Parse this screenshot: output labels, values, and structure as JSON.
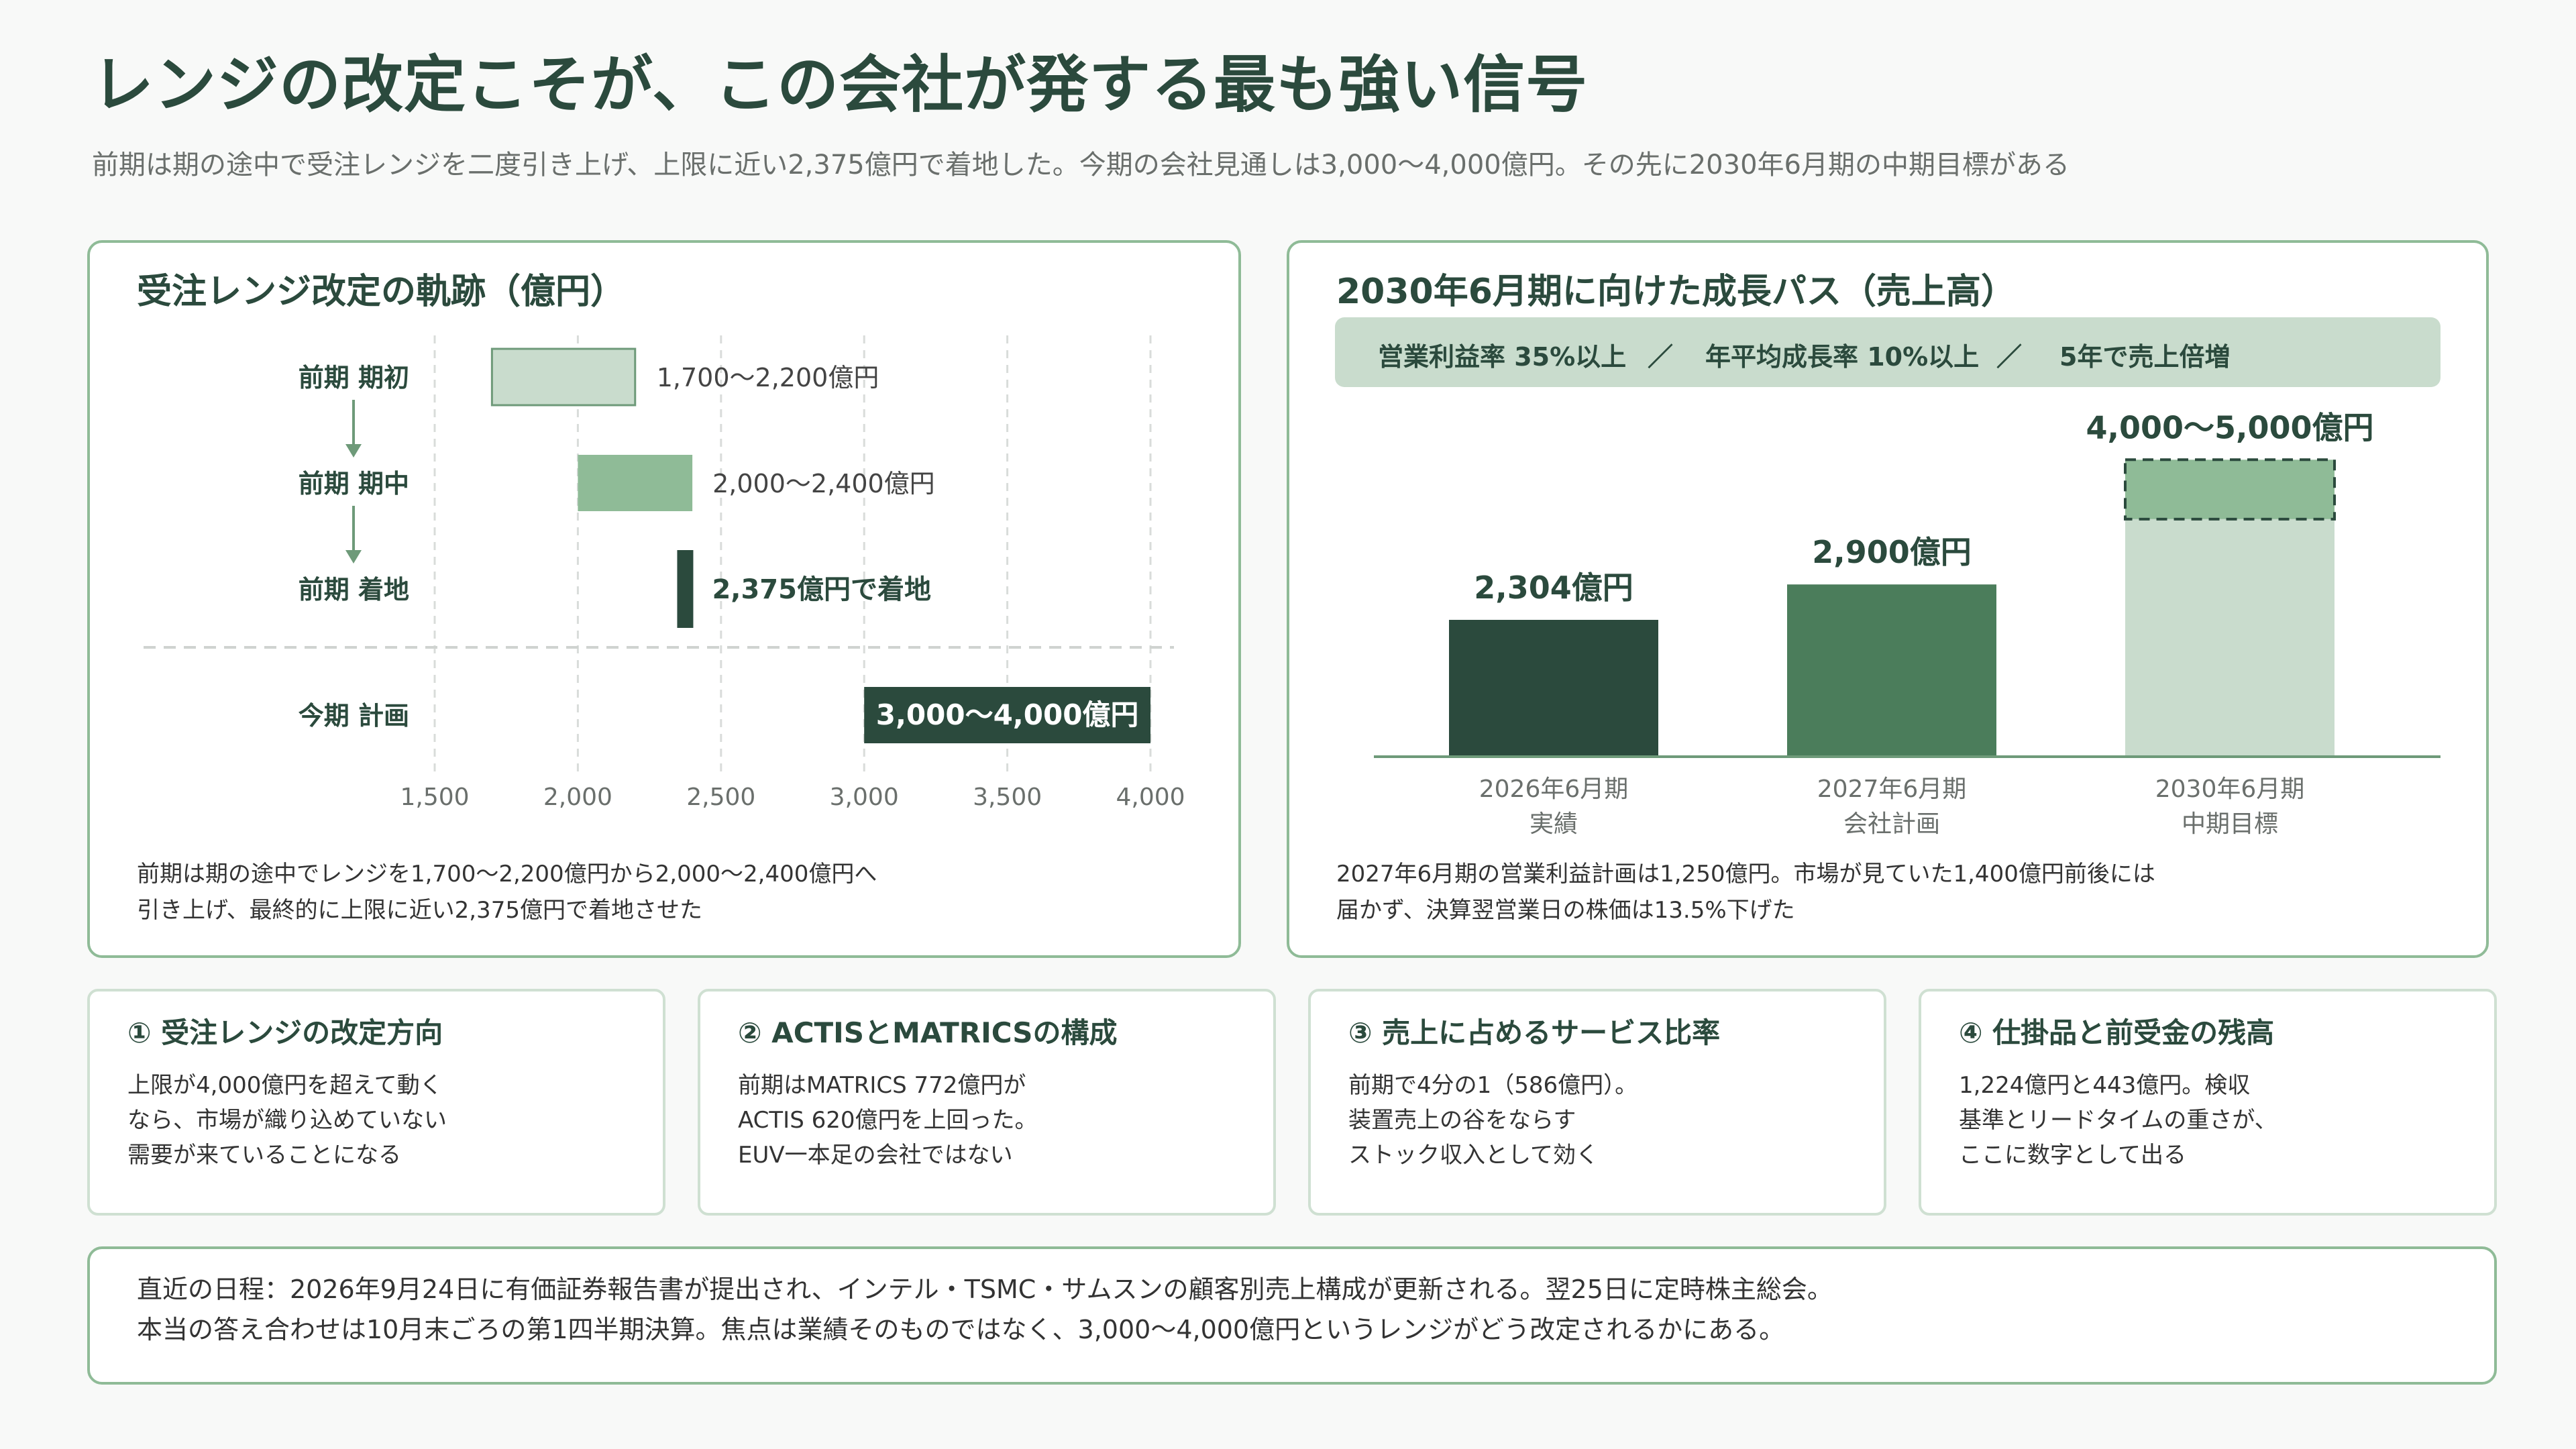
{
  "header": {
    "title": "レンジの改定こそが、この会社が発する最も強い信号",
    "subtitle": "前期は期の途中で受注レンジを二度引き上げ、上限に近い2,375億円で着地した。今期の会社見通しは3,000〜4,000億円。その先に2030年6月期の中期目標がある"
  },
  "left_panel": {
    "title": "受注レンジ改定の軌跡（億円）",
    "note_lines": [
      "前期は期の途中でレンジを1,700〜2,200億円から2,000〜2,400億円へ",
      "引き上げ、最終的に上限に近い2,375億円で着地させた"
    ]
  },
  "right_panel": {
    "title": "2030年6月期に向けた成長パス（売上高）",
    "banner": [
      "営業利益率 35%以上",
      "／",
      "年平均成長率 10%以上",
      "／",
      "5年で売上倍増"
    ],
    "note_lines": [
      "2027年6月期の営業利益計画は1,250億円。市場が見ていた1,400億円前後には",
      "届かず、決算翌営業日の株価は13.5%下げた"
    ]
  },
  "chart_data": [
    {
      "type": "range-bar",
      "title": "受注レンジ改定の軌跡（億円）",
      "categories": [
        "前期 期初",
        "前期 期中",
        "前期 着地",
        "今期 計画"
      ],
      "ranges": [
        [
          1700,
          2200
        ],
        [
          2000,
          2400
        ],
        [
          2375,
          2375
        ],
        [
          3000,
          4000
        ]
      ],
      "labels": [
        "1,700〜2,200億円",
        "2,000〜2,400億円",
        "2,375億円で着地",
        "3,000〜4,000億円"
      ],
      "xlim": [
        1500,
        4000
      ],
      "xticks": [
        1500,
        2000,
        2500,
        3000,
        3500,
        4000
      ],
      "xtick_labels": [
        "1,500",
        "2,000",
        "2,500",
        "3,000",
        "3,500",
        "4,000"
      ],
      "colors": [
        "#c9dccd",
        "#8fbb97",
        "#2b4a3d",
        "#2b4a3d"
      ],
      "grid": true
    },
    {
      "type": "bar",
      "title": "2030年6月期に向けた成長パス（売上高）",
      "categories": [
        [
          "2026年6月期",
          "実績"
        ],
        [
          "2027年6月期",
          "会社計画"
        ],
        [
          "2030年6月期",
          "中期目標"
        ]
      ],
      "values": [
        2304,
        2900,
        4000
      ],
      "range_upper": [
        null,
        null,
        5000
      ],
      "labels": [
        "2,304億円",
        "2,900億円",
        "4,000〜5,000億円"
      ],
      "colors": [
        "#2b4a3d",
        "#4b7d5b",
        "#c9dccd"
      ],
      "range_color": "#8fbb97",
      "ylim": [
        0,
        5000
      ],
      "grid": false
    }
  ],
  "cards": [
    {
      "title": "① 受注レンジの改定方向",
      "lines": [
        "上限が4,000億円を超えて動く",
        "なら、市場が織り込めていない",
        "需要が来ていることになる"
      ]
    },
    {
      "title": "② ACTISとMATRICSの構成",
      "lines": [
        "前期はMATRICS 772億円が",
        "ACTIS 620億円を上回った。",
        "EUV一本足の会社ではない"
      ]
    },
    {
      "title": "③ 売上に占めるサービス比率",
      "lines": [
        "前期で4分の1（586億円）。",
        "装置売上の谷をならす",
        "ストック収入として効く"
      ]
    },
    {
      "title": "④ 仕掛品と前受金の残高",
      "lines": [
        "1,224億円と443億円。検収",
        "基準とリードタイムの重さが、",
        "ここに数字として出る"
      ]
    }
  ],
  "bottom": {
    "lines": [
      "直近の日程：2026年9月24日に有価証券報告書が提出され、インテル・TSMC・サムスンの顧客別売上構成が更新される。翌25日に定時株主総会。",
      "本当の答え合わせは10月末ごろの第1四半期決算。焦点は業績そのものではなく、3,000〜4,000億円というレンジがどう改定されるかにある。"
    ]
  }
}
